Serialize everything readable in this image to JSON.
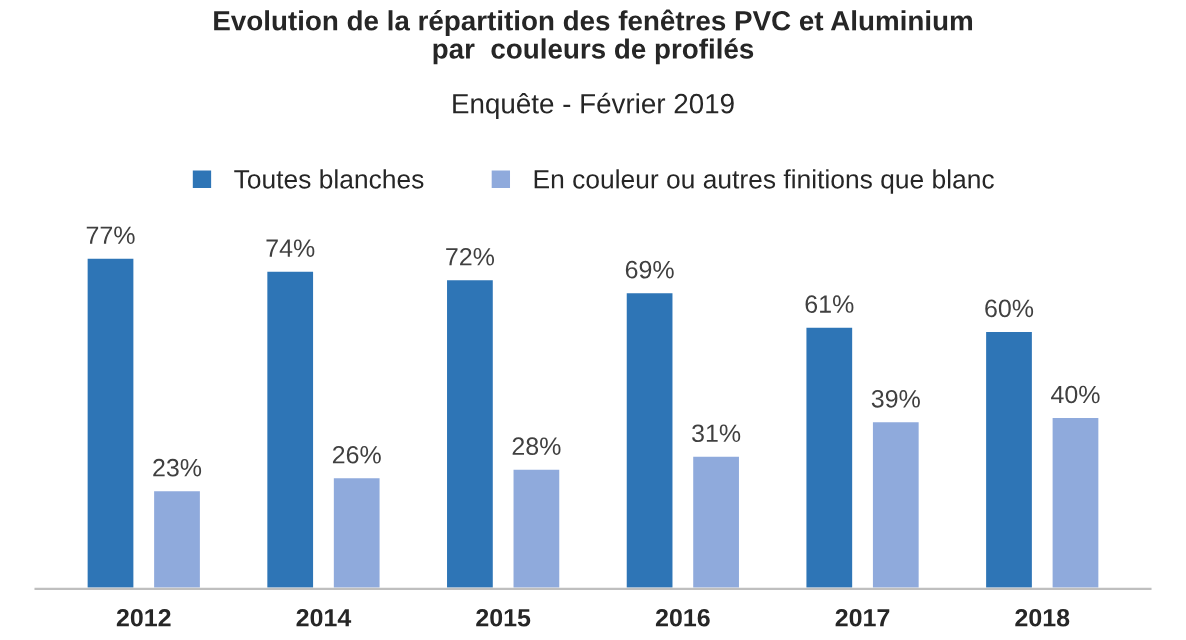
{
  "chart_data": {
    "type": "bar",
    "title": "Evolution de la répartition des fenêtres PVC et Aluminium\npar  couleurs de profilés",
    "subtitle": "Enquête - Février 2019",
    "categories": [
      "2012",
      "2014",
      "2015",
      "2016",
      "2017",
      "2018"
    ],
    "series": [
      {
        "name": "Toutes blanches",
        "color": "#2e75b6",
        "values": [
          77,
          74,
          72,
          69,
          61,
          60
        ],
        "value_labels": [
          "77%",
          "74%",
          "72%",
          "69%",
          "61%",
          "60%"
        ]
      },
      {
        "name": "En couleur ou autres finitions que blanc",
        "color": "#8faadc",
        "values": [
          23,
          26,
          28,
          31,
          39,
          40
        ],
        "value_labels": [
          "23%",
          "26%",
          "28%",
          "31%",
          "39%",
          "40%"
        ]
      }
    ],
    "legend": "top",
    "grid": false,
    "tick_labels": "x"
  }
}
